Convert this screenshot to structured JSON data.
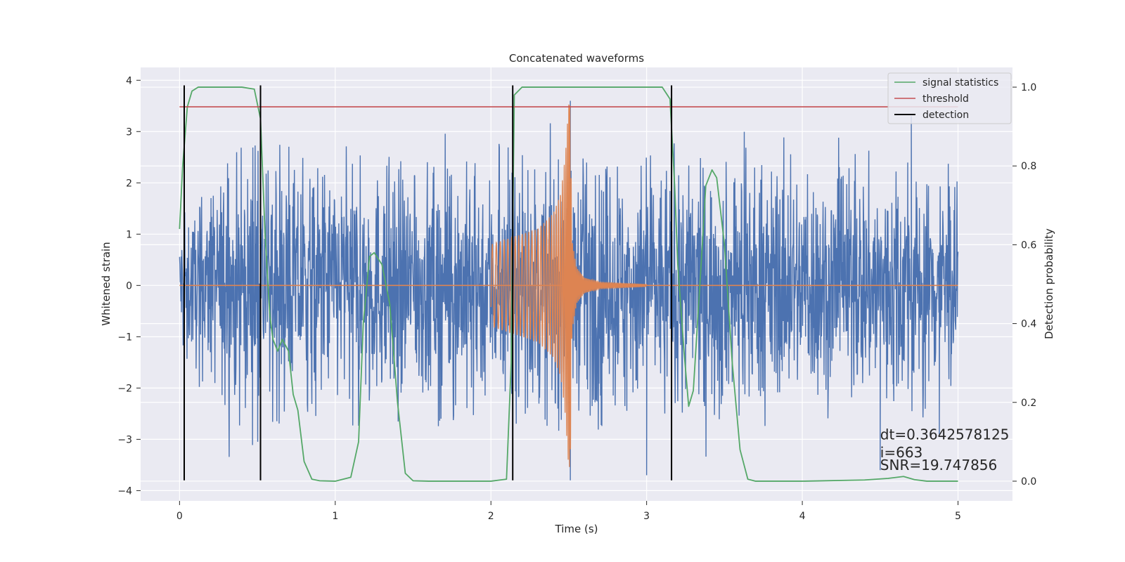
{
  "chart_data": {
    "type": "line",
    "title": "Concatenated waveforms",
    "xlabel": "Time (s)",
    "ylabel": "Whitened strain",
    "y2label": "Detection probability",
    "xlim": [
      -0.25,
      5.35
    ],
    "ylim": [
      -4.2,
      4.25
    ],
    "y2lim": [
      -0.05,
      1.05
    ],
    "xticks": [
      0,
      1,
      2,
      3,
      4,
      5
    ],
    "xtick_labels": [
      "0",
      "1",
      "2",
      "3",
      "4",
      "5"
    ],
    "yticks": [
      -4,
      -3,
      -2,
      -1,
      0,
      1,
      2,
      3,
      4
    ],
    "ytick_labels": [
      "−4",
      "−3",
      "−2",
      "−1",
      "0",
      "1",
      "2",
      "3",
      "4"
    ],
    "y2ticks": [
      0.0,
      0.2,
      0.4,
      0.6,
      0.8,
      1.0
    ],
    "y2tick_labels": [
      "0.0",
      "0.2",
      "0.4",
      "0.6",
      "0.8",
      "1.0"
    ],
    "grid": true,
    "legend_position": "top-right",
    "series": [
      {
        "kind": "noise",
        "axis": "left",
        "color": "#4c72b0",
        "x_range": [
          0,
          5
        ],
        "envelope_points": [
          [
            0,
            1.3
          ],
          [
            0.3,
            2.5
          ],
          [
            1.0,
            2.5
          ],
          [
            1.5,
            2.5
          ],
          [
            2.0,
            2.5
          ],
          [
            2.5,
            2.6
          ],
          [
            3.0,
            2.5
          ],
          [
            4.0,
            2.5
          ],
          [
            4.7,
            2.5
          ],
          [
            5.0,
            2.2
          ]
        ],
        "notable_spikes": [
          [
            2.51,
            -3.8
          ],
          [
            2.51,
            3.6
          ],
          [
            2.43,
            -2.4
          ],
          [
            3.0,
            -3.7
          ],
          [
            4.7,
            3.3
          ],
          [
            4.88,
            -2.9
          ],
          [
            4.5,
            -3.6
          ]
        ]
      },
      {
        "kind": "chirp",
        "axis": "left",
        "color": "#dd8452",
        "x": [
          2.0,
          2.05,
          2.1,
          2.2,
          2.3,
          2.4,
          2.45,
          2.48,
          2.5,
          2.51,
          2.52,
          2.55,
          2.6,
          2.7,
          3.0
        ],
        "amplitude": [
          0.8,
          0.85,
          0.9,
          1.0,
          1.1,
          1.4,
          1.8,
          2.6,
          3.6,
          3.5,
          0.9,
          0.35,
          0.15,
          0.06,
          0.02
        ],
        "baseline": 0.0,
        "baseline_x_range": [
          0,
          5
        ]
      },
      {
        "name": "signal statistics",
        "axis": "right",
        "color": "#55a868",
        "x": [
          0.0,
          0.02,
          0.05,
          0.08,
          0.12,
          0.2,
          0.4,
          0.48,
          0.52,
          0.55,
          0.58,
          0.6,
          0.63,
          0.66,
          0.7,
          0.73,
          0.76,
          0.8,
          0.85,
          0.9,
          1.0,
          1.1,
          1.15,
          1.18,
          1.22,
          1.25,
          1.3,
          1.35,
          1.4,
          1.45,
          1.5,
          1.6,
          2.0,
          2.1,
          2.13,
          2.15,
          2.2,
          2.25,
          3.0,
          3.1,
          3.15,
          3.18,
          3.2,
          3.24,
          3.27,
          3.3,
          3.35,
          3.38,
          3.42,
          3.45,
          3.5,
          3.55,
          3.6,
          3.65,
          3.7,
          4.0,
          4.4,
          4.55,
          4.65,
          4.72,
          4.8,
          5.0
        ],
        "y": [
          0.64,
          0.8,
          0.95,
          0.99,
          1.0,
          1.0,
          1.0,
          0.995,
          0.92,
          0.62,
          0.42,
          0.36,
          0.33,
          0.36,
          0.33,
          0.22,
          0.18,
          0.05,
          0.005,
          0.001,
          0.0,
          0.01,
          0.1,
          0.4,
          0.57,
          0.58,
          0.55,
          0.45,
          0.2,
          0.02,
          0.001,
          0.0,
          0.0,
          0.005,
          0.3,
          0.98,
          1.0,
          1.0,
          1.0,
          1.0,
          0.97,
          0.75,
          0.55,
          0.33,
          0.19,
          0.23,
          0.55,
          0.75,
          0.79,
          0.77,
          0.6,
          0.3,
          0.08,
          0.005,
          0.0,
          0.0,
          0.003,
          0.007,
          0.012,
          0.004,
          0.0,
          0.0
        ]
      },
      {
        "name": "threshold",
        "axis": "right",
        "color": "#c44e52",
        "x": [
          0,
          5
        ],
        "y": [
          0.95,
          0.95
        ]
      },
      {
        "name": "detection",
        "axis": "left",
        "color": "#000000",
        "kind": "vlines",
        "x": [
          0.03,
          0.52,
          2.14,
          3.16
        ],
        "ymin": -3.8,
        "ymax": 3.9
      }
    ],
    "annotations": [
      {
        "text": "dt=0.3642578125",
        "x": 4.5,
        "y": -3.0
      },
      {
        "text": " i=663",
        "x": 4.5,
        "y": -3.35
      },
      {
        "text": "SNR=19.747856",
        "x": 4.5,
        "y": -3.6
      }
    ]
  }
}
